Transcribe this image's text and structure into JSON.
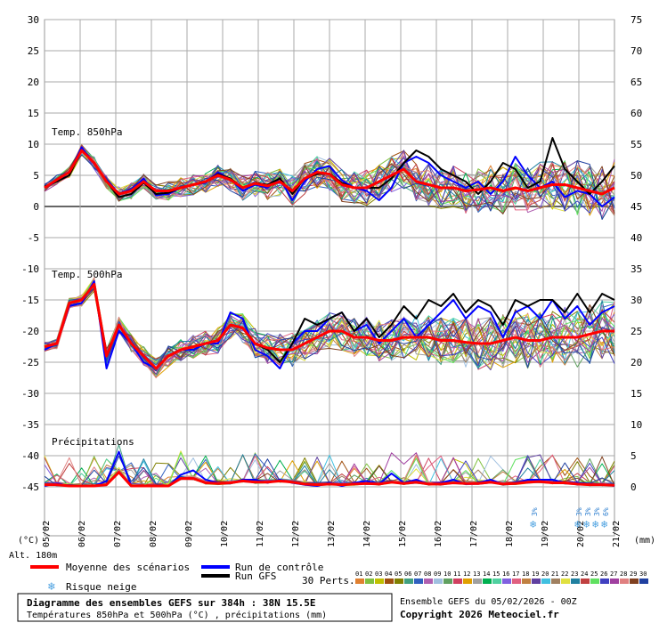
{
  "chart_data": {
    "type": "line",
    "title": "Diagramme des ensembles GEFS sur 384h : 38N 15.5E",
    "subtitle": "Températures 850hPa et 500hPa (°C) , précipitations (mm)",
    "run_label": "Ensemble GEFS du 05/02/2026 - 00Z",
    "copyright": "Copyright 2026 Meteociel.fr",
    "altitude": "Alt. 180m",
    "left_unit": "(°C)",
    "right_unit": "(mm)",
    "left_ticks": [
      "30",
      "25",
      "20",
      "15",
      "10",
      "5",
      "0",
      "-5",
      "-10",
      "-15",
      "-20",
      "-25",
      "-30",
      "-35",
      "-40",
      "-45"
    ],
    "right_ticks": [
      "75",
      "70",
      "65",
      "60",
      "55",
      "50",
      "45",
      "40",
      "35",
      "30",
      "25",
      "20",
      "15",
      "10",
      "5",
      "0"
    ],
    "x_dates": [
      "06/02",
      "07/02",
      "08/02",
      "09/02",
      "10/02",
      "11/02",
      "12/02",
      "13/02",
      "14/02",
      "15/02",
      "16/02",
      "17/02",
      "18/02",
      "19/02",
      "20/02",
      "21/02"
    ],
    "x_first": "05/02",
    "panel_labels": [
      "Temp. 850hPa",
      "Temp. 500hPa",
      "Précipitations"
    ],
    "snow_risk": [
      {
        "date": "18/02 18h",
        "pct": "3%"
      },
      {
        "date": "20/02 00h",
        "pct": "3%"
      },
      {
        "date": "20/02 06h",
        "pct": "3%"
      },
      {
        "date": "20/02 12h",
        "pct": "3%"
      },
      {
        "date": "20/02 18h",
        "pct": "6%"
      }
    ],
    "legend": {
      "mean": "Moyenne des scénarios",
      "control": "Run de contrôle",
      "gfs": "Run GFS",
      "snow": "Risque neige",
      "perts": "30 Perts."
    },
    "pert_labels": [
      "01",
      "02",
      "03",
      "04",
      "05",
      "06",
      "07",
      "08",
      "09",
      "10",
      "11",
      "12",
      "13",
      "14",
      "15",
      "16",
      "17",
      "18",
      "19",
      "20",
      "21",
      "22",
      "23",
      "24",
      "25",
      "26",
      "27",
      "28",
      "29",
      "30"
    ],
    "pert_colors": [
      "#e08030",
      "#80c040",
      "#c0c000",
      "#a05010",
      "#808000",
      "#40a080",
      "#3060c0",
      "#b060b0",
      "#a0c0e0",
      "#60a060",
      "#d04060",
      "#e0a000",
      "#a0a0a0",
      "#00b050",
      "#50d0a0",
      "#8060e0",
      "#e06080",
      "#c08040",
      "#6040a0",
      "#40c0e0",
      "#a08060",
      "#e0e040",
      "#2080a0",
      "#c04040",
      "#60e060",
      "#4040c0",
      "#a040a0",
      "#e08080",
      "#804020",
      "#2040a0"
    ],
    "series_colors": {
      "mean": "#ff0000",
      "control": "#0000ff",
      "gfs": "#000000"
    },
    "mean_850": [
      3,
      4.3,
      5.5,
      9,
      7,
      4,
      2,
      2.5,
      4,
      2.5,
      2.5,
      3,
      3.5,
      4,
      5,
      4.3,
      3,
      3.7,
      3.3,
      4,
      2.5,
      4.5,
      5.5,
      5.2,
      3.5,
      3,
      3,
      4,
      5,
      6,
      4,
      3.5,
      3,
      3,
      2.5,
      2.7,
      3,
      2.5,
      3,
      2.5,
      3,
      3.5,
      3.5,
      3,
      2.5,
      2,
      3
    ],
    "control_850": [
      3,
      4,
      5.5,
      9.5,
      6.8,
      4.2,
      2.1,
      2.7,
      4.5,
      1.8,
      2,
      3,
      3.5,
      3.8,
      5.5,
      4.4,
      2.5,
      3.5,
      3,
      4.5,
      1,
      4,
      6,
      6.5,
      4.2,
      3,
      2.5,
      1,
      3,
      7,
      8,
      7,
      5,
      4,
      3,
      4,
      2,
      4,
      8,
      5,
      3,
      4,
      1.5,
      2.5,
      2,
      0,
      1.5
    ],
    "gfs_850": [
      3.2,
      4,
      5,
      9,
      7,
      4,
      1.5,
      2,
      3.8,
      2,
      2.2,
      3,
      3.5,
      4,
      5.2,
      4.5,
      3,
      3.8,
      3.5,
      4.5,
      2,
      4.5,
      5.2,
      5.3,
      3.8,
      3,
      3,
      3,
      4.5,
      7,
      9,
      8,
      6,
      5,
      4,
      2,
      4,
      7,
      6,
      3,
      4,
      11,
      6,
      4,
      2,
      4,
      6.5
    ],
    "mean_500": [
      -22.5,
      -22,
      -15.5,
      -15,
      -12.5,
      -24,
      -19,
      -22,
      -24,
      -26,
      -24,
      -23,
      -22.5,
      -22,
      -21.5,
      -19,
      -19.5,
      -22,
      -22.7,
      -23,
      -23,
      -22,
      -21,
      -20,
      -20,
      -21,
      -21,
      -21.5,
      -21.5,
      -21,
      -21,
      -21,
      -21.5,
      -21.5,
      -21.8,
      -22,
      -22,
      -21.5,
      -21,
      -21.5,
      -21.5,
      -21,
      -21,
      -21,
      -20.5,
      -20,
      -20
    ],
    "control_500": [
      -23,
      -22,
      -16,
      -15.5,
      -12,
      -26,
      -20,
      -22,
      -25,
      -26,
      -24,
      -23,
      -23,
      -22,
      -22,
      -17,
      -18,
      -23,
      -24,
      -26,
      -22,
      -20,
      -20,
      -18,
      -17,
      -20,
      -19,
      -22,
      -20,
      -18,
      -21,
      -19,
      -17,
      -15,
      -18,
      -16,
      -17,
      -21,
      -17,
      -16,
      -18,
      -15,
      -18,
      -16,
      -19,
      -17,
      -16
    ],
    "gfs_500": [
      -22.5,
      -22,
      -15.5,
      -15,
      -12.5,
      -24,
      -19,
      -22,
      -24,
      -26,
      -24,
      -23,
      -22.5,
      -22,
      -21.5,
      -19,
      -19.5,
      -22,
      -23,
      -25,
      -22,
      -18,
      -19,
      -18,
      -17,
      -20,
      -18,
      -21,
      -19,
      -16,
      -18,
      -15,
      -16,
      -14,
      -17,
      -15,
      -16,
      -19,
      -15,
      -16,
      -15,
      -15,
      -17,
      -14,
      -17,
      -14,
      -15
    ],
    "mean_precip": [
      0.2,
      0.2,
      0,
      0,
      0,
      0.2,
      2.2,
      0,
      0,
      0,
      0,
      1.2,
      1.2,
      0.5,
      0.4,
      0.5,
      0.8,
      0.6,
      0.6,
      0.8,
      0.6,
      0.3,
      0.2,
      0.3,
      0.2,
      0.3,
      0.4,
      0.3,
      0.6,
      0.4,
      0.6,
      0.3,
      0.3,
      0.5,
      0.4,
      0.4,
      0.6,
      0.3,
      0.4,
      0.6,
      0.7,
      0.5,
      0.5,
      0.3,
      0.2,
      0.2,
      0.1
    ],
    "control_precip": [
      0,
      0.4,
      0,
      0,
      0,
      0.8,
      5.5,
      0,
      0,
      0,
      0,
      1.8,
      2.5,
      1,
      0.5,
      0.5,
      1,
      1,
      0.5,
      1,
      0.5,
      0.2,
      0,
      0.5,
      0,
      0.5,
      0.8,
      0.3,
      2,
      0.5,
      1,
      0.3,
      0.5,
      1,
      0.3,
      0.5,
      1,
      0.3,
      0.5,
      1,
      1,
      1,
      0.5,
      0.5,
      0.3,
      0.3,
      0
    ]
  }
}
